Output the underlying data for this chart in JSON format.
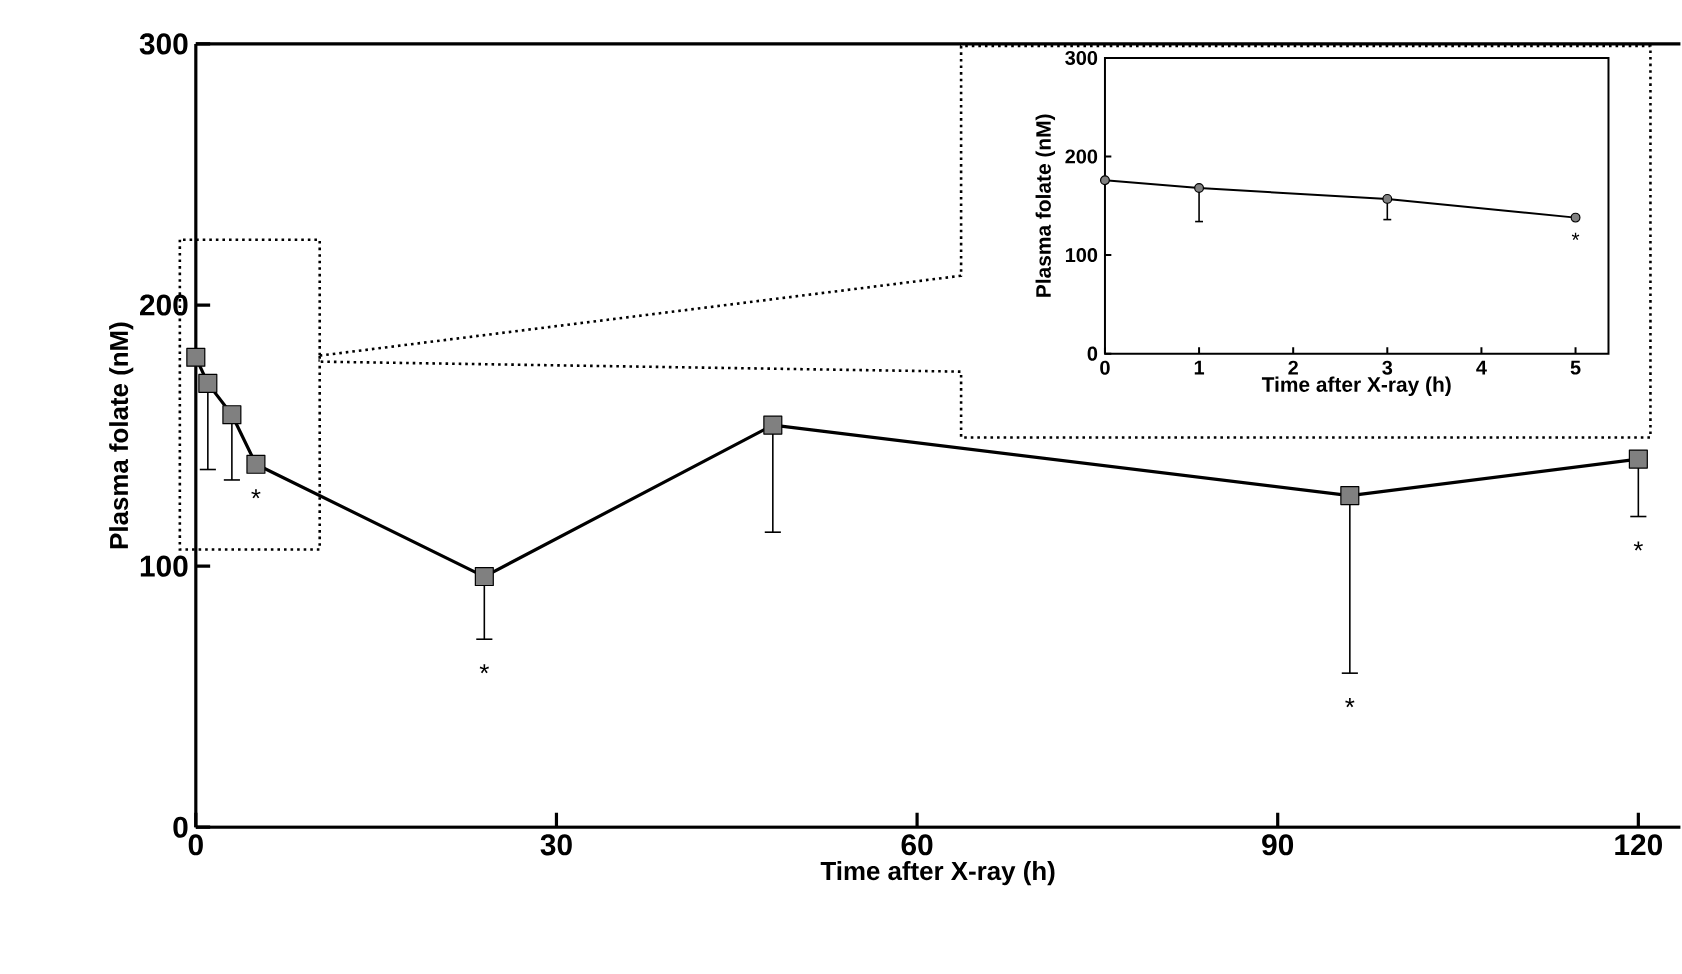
{
  "chart_data": [
    {
      "type": "line",
      "xlabel": "Time after X-ray (h)",
      "ylabel": "Plasma folate (nM)",
      "x": [
        0,
        1,
        3,
        5,
        24,
        48,
        96,
        120
      ],
      "values": [
        180,
        170,
        158,
        139,
        96,
        154,
        127,
        141
      ],
      "errors": [
        null,
        [
          137,
          170
        ],
        [
          133,
          158
        ],
        null,
        [
          72,
          96
        ],
        [
          113,
          154
        ],
        [
          59,
          127
        ],
        [
          119,
          141
        ]
      ],
      "color": "#808080",
      "marker": "square",
      "xlim": [
        0,
        123.5
      ],
      "ylim": [
        0,
        300
      ],
      "xticks": [
        0,
        30,
        60,
        90,
        120
      ],
      "yticks": [
        0,
        100,
        200,
        300
      ],
      "annotations": [
        {
          "text": "*",
          "x": 5,
          "y": 139
        },
        {
          "text": "*",
          "x": 24,
          "y": 72
        },
        {
          "text": "*",
          "x": 96,
          "y": 59
        },
        {
          "text": "*",
          "x": 120,
          "y": 119
        }
      ]
    },
    {
      "type": "line",
      "xlabel": "Time after X-ray (h)",
      "ylabel": "Plasma folate (nM)",
      "x": [
        0,
        1,
        3,
        5
      ],
      "values": [
        176,
        168,
        157,
        138
      ],
      "errors": [
        null,
        [
          134,
          168
        ],
        [
          136,
          157
        ],
        null
      ],
      "color": "#808080",
      "marker": "circle",
      "xlim": [
        0,
        5.35
      ],
      "ylim": [
        0,
        300
      ],
      "xticks": [
        0,
        1,
        2,
        3,
        4,
        5
      ],
      "yticks": [
        0,
        100,
        200,
        300
      ],
      "annotations": [
        {
          "text": "*",
          "x": 5,
          "y": 138
        }
      ]
    }
  ]
}
